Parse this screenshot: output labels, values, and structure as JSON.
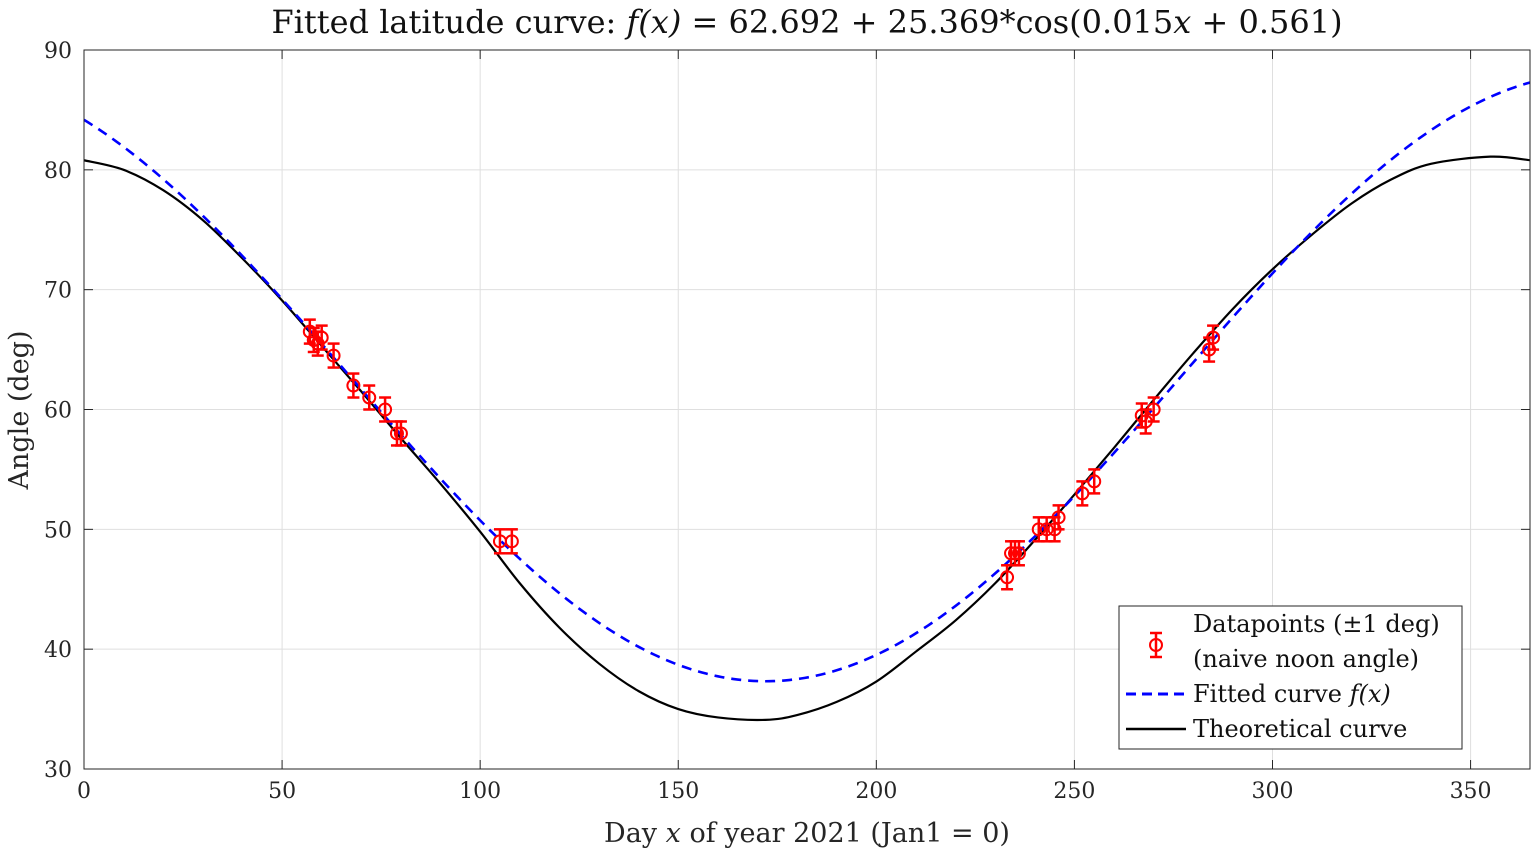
{
  "colors": {
    "data": "#ff0000",
    "fit": "#0000ff",
    "theory": "#000000",
    "grid": "#dfdfdf",
    "axis": "#262626"
  },
  "chart_data": {
    "type": "line",
    "title": "Fitted latitude curve: f(x) = 62.692 + 25.369*cos(0.015x + 0.561)",
    "title_parts": {
      "prefix": "Fitted latitude curve: ",
      "fx": "f(x)",
      "eq1": " = 62.692 + 25.369*cos(0.015",
      "x": "x",
      "eq2": " + 0.561)"
    },
    "xlabel": "Day x of year 2021 (Jan1 = 0)",
    "xlabel_parts": {
      "prefix": "Day ",
      "x": "x",
      "suffix": " of year 2021 (Jan1 = 0)"
    },
    "ylabel": "Angle (deg)",
    "xlim": [
      0,
      365
    ],
    "ylim": [
      30,
      90
    ],
    "xticks": [
      0,
      50,
      100,
      150,
      200,
      250,
      300,
      350
    ],
    "yticks": [
      30,
      40,
      50,
      60,
      70,
      80,
      90
    ],
    "grid": true,
    "legend_position": "bottom-right",
    "series": [
      {
        "name": "Datapoints (±1 deg) (naive noon angle)",
        "legend_line1": "Datapoints (±1 deg)",
        "legend_line2": "(naive noon angle)",
        "kind": "errorbar",
        "marker": "circle",
        "error": 1,
        "points": [
          [
            57,
            66.5
          ],
          [
            58,
            65.8
          ],
          [
            59,
            65.5
          ],
          [
            60,
            66
          ],
          [
            63,
            64.5
          ],
          [
            68,
            62
          ],
          [
            72,
            61
          ],
          [
            76,
            60
          ],
          [
            79,
            58
          ],
          [
            80,
            58
          ],
          [
            105,
            49
          ],
          [
            108,
            49
          ],
          [
            233,
            46
          ],
          [
            234,
            48
          ],
          [
            235,
            48
          ],
          [
            236,
            48
          ],
          [
            241,
            50
          ],
          [
            243,
            50
          ],
          [
            245,
            50
          ],
          [
            246,
            51
          ],
          [
            252,
            53
          ],
          [
            255,
            54
          ],
          [
            267,
            59.5
          ],
          [
            268,
            59
          ],
          [
            270,
            60
          ],
          [
            284,
            65
          ],
          [
            285,
            66
          ]
        ]
      },
      {
        "name": "Fitted curve f(x)",
        "legend_prefix": "Fitted curve ",
        "legend_fx": "f(x)",
        "kind": "line",
        "style": "dashed",
        "formula": "62.692 + 25.369*cos(0.015x + 0.561)",
        "params": {
          "a": 62.692,
          "b": 25.369,
          "w": 0.015,
          "p": 0.561
        }
      },
      {
        "name": "Theoretical curve",
        "kind": "line",
        "style": "solid",
        "x": [
          0,
          10,
          20,
          30,
          40,
          50,
          60,
          70,
          80,
          90,
          100,
          110,
          120,
          130,
          140,
          150,
          160,
          172,
          180,
          190,
          200,
          210,
          220,
          230,
          240,
          250,
          260,
          270,
          280,
          290,
          300,
          310,
          320,
          330,
          340,
          355,
          365
        ],
        "y": [
          80.8,
          80,
          78.3,
          75.8,
          72.6,
          69.1,
          65.3,
          61.5,
          57.6,
          53.8,
          49.8,
          45.5,
          41.8,
          38.8,
          36.5,
          35,
          34.3,
          34.1,
          34.5,
          35.6,
          37.3,
          39.8,
          42.4,
          45.5,
          49.1,
          52.9,
          56.8,
          60.8,
          64.7,
          68.4,
          71.7,
          74.6,
          77.2,
          79.2,
          80.5,
          81.1,
          80.8
        ]
      }
    ]
  }
}
